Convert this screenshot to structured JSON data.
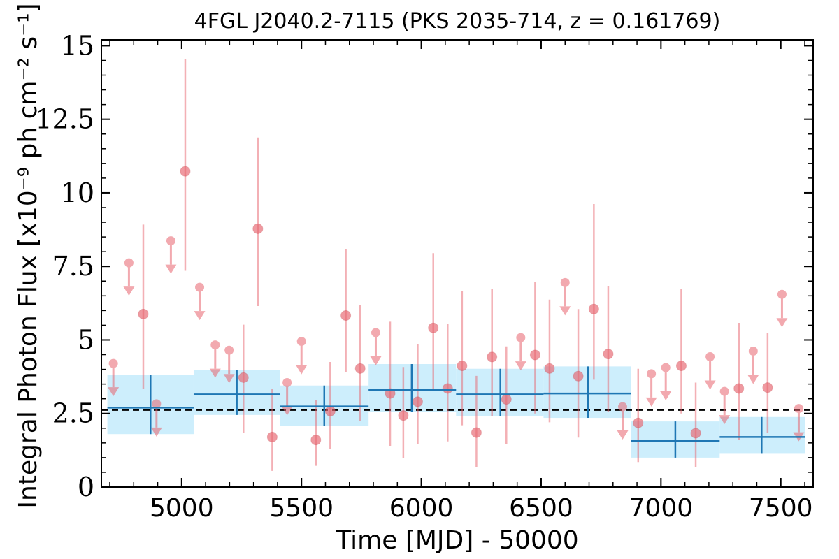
{
  "chart_data": {
    "type": "scatter",
    "title": "4FGL J2040.2-7115 (PKS 2035-714, z = 0.161769)",
    "xlabel": "Time [MJD] - 50000",
    "ylabel": "Integral Photon Flux [x10⁻⁹ ph cm⁻² s⁻¹]",
    "xlim": [
      4665,
      7635
    ],
    "ylim": [
      0,
      15.2
    ],
    "x_ticks": [
      5000,
      5500,
      6000,
      6500,
      7000,
      7500
    ],
    "x_tick_labels": [
      "5000",
      "5500",
      "6000",
      "6500",
      "7000",
      "7500"
    ],
    "y_ticks": [
      0,
      2.5,
      5,
      7.5,
      10,
      12.5,
      15
    ],
    "y_tick_labels": [
      "0",
      "2.5",
      "5",
      "7.5",
      "10",
      "12.5",
      "15"
    ],
    "mean_flux": 2.62,
    "colors": {
      "points": "#e8646e",
      "binned": "#1f77b4",
      "band": "#cdeefc",
      "mean_line": "#000000"
    },
    "measurements": [
      {
        "x": 4840,
        "y": 5.88,
        "lo": 3.35,
        "hi": 8.92
      },
      {
        "x": 5015,
        "y": 10.73,
        "lo": 7.35,
        "hi": 14.55
      },
      {
        "x": 5258,
        "y": 3.72,
        "lo": 1.85,
        "hi": 5.52
      },
      {
        "x": 5318,
        "y": 8.78,
        "lo": 6.15,
        "hi": 11.88
      },
      {
        "x": 5378,
        "y": 1.7,
        "lo": 0.55,
        "hi": 3.35
      },
      {
        "x": 5560,
        "y": 1.6,
        "lo": 0.72,
        "hi": 2.95
      },
      {
        "x": 5620,
        "y": 2.58,
        "lo": 1.3,
        "hi": 4.25
      },
      {
        "x": 5685,
        "y": 5.83,
        "lo": 3.9,
        "hi": 8.08
      },
      {
        "x": 5745,
        "y": 4.03,
        "lo": 2.25,
        "hi": 6.2
      },
      {
        "x": 5870,
        "y": 3.18,
        "lo": 1.4,
        "hi": 5.62
      },
      {
        "x": 5925,
        "y": 2.43,
        "lo": 0.98,
        "hi": 4.08
      },
      {
        "x": 5985,
        "y": 2.9,
        "lo": 1.45,
        "hi": 4.85
      },
      {
        "x": 6050,
        "y": 5.41,
        "lo": 3.35,
        "hi": 7.95
      },
      {
        "x": 6110,
        "y": 3.35,
        "lo": 1.55,
        "hi": 5.55
      },
      {
        "x": 6170,
        "y": 4.12,
        "lo": 2.1,
        "hi": 6.67
      },
      {
        "x": 6230,
        "y": 1.85,
        "lo": 0.67,
        "hi": 3.78
      },
      {
        "x": 6295,
        "y": 4.42,
        "lo": 2.4,
        "hi": 6.72
      },
      {
        "x": 6355,
        "y": 2.98,
        "lo": 1.45,
        "hi": 4.78
      },
      {
        "x": 6475,
        "y": 4.49,
        "lo": 2.5,
        "hi": 6.97
      },
      {
        "x": 6535,
        "y": 4.03,
        "lo": 2.2,
        "hi": 6.37
      },
      {
        "x": 6655,
        "y": 3.77,
        "lo": 1.68,
        "hi": 6.05
      },
      {
        "x": 6720,
        "y": 6.05,
        "lo": 3.65,
        "hi": 9.62
      },
      {
        "x": 6780,
        "y": 4.52,
        "lo": 2.55,
        "hi": 6.82
      },
      {
        "x": 6905,
        "y": 2.18,
        "lo": 0.85,
        "hi": 4.02
      },
      {
        "x": 7085,
        "y": 4.12,
        "lo": 2.5,
        "hi": 6.72
      },
      {
        "x": 7145,
        "y": 1.83,
        "lo": 0.68,
        "hi": 3.55
      },
      {
        "x": 7325,
        "y": 3.35,
        "lo": 1.6,
        "hi": 5.58
      },
      {
        "x": 7445,
        "y": 3.38,
        "lo": 1.85,
        "hi": 5.25
      }
    ],
    "upper_limits": [
      {
        "x": 4715,
        "y": 4.2
      },
      {
        "x": 4780,
        "y": 7.62
      },
      {
        "x": 4895,
        "y": 2.83
      },
      {
        "x": 4955,
        "y": 8.37
      },
      {
        "x": 5075,
        "y": 6.79
      },
      {
        "x": 5140,
        "y": 4.83
      },
      {
        "x": 5198,
        "y": 4.65
      },
      {
        "x": 5440,
        "y": 3.55
      },
      {
        "x": 5500,
        "y": 4.95
      },
      {
        "x": 5810,
        "y": 5.25
      },
      {
        "x": 6415,
        "y": 5.08
      },
      {
        "x": 6600,
        "y": 6.95
      },
      {
        "x": 6840,
        "y": 2.73
      },
      {
        "x": 6960,
        "y": 3.85
      },
      {
        "x": 7020,
        "y": 4.06
      },
      {
        "x": 7205,
        "y": 4.43
      },
      {
        "x": 7265,
        "y": 3.25
      },
      {
        "x": 7385,
        "y": 4.62
      },
      {
        "x": 7505,
        "y": 6.55
      },
      {
        "x": 7575,
        "y": 2.67
      }
    ],
    "bins": [
      {
        "x0": 4690,
        "x1": 5050,
        "xc": 4870,
        "y": 2.7,
        "ylo": 1.8,
        "yhi": 3.8
      },
      {
        "x0": 5050,
        "x1": 5410,
        "xc": 5230,
        "y": 3.15,
        "ylo": 2.45,
        "yhi": 3.97
      },
      {
        "x0": 5410,
        "x1": 5780,
        "xc": 5595,
        "y": 2.74,
        "ylo": 2.07,
        "yhi": 3.45
      },
      {
        "x0": 5780,
        "x1": 6145,
        "xc": 5960,
        "y": 3.3,
        "ylo": 2.55,
        "yhi": 4.18
      },
      {
        "x0": 6145,
        "x1": 6510,
        "xc": 6330,
        "y": 3.15,
        "ylo": 2.4,
        "yhi": 4.02
      },
      {
        "x0": 6510,
        "x1": 6875,
        "xc": 6695,
        "y": 3.18,
        "ylo": 2.35,
        "yhi": 4.1
      },
      {
        "x0": 6875,
        "x1": 7245,
        "xc": 7060,
        "y": 1.57,
        "ylo": 1.0,
        "yhi": 2.23
      },
      {
        "x0": 7245,
        "x1": 7600,
        "xc": 7420,
        "y": 1.7,
        "ylo": 1.13,
        "yhi": 2.38
      }
    ]
  }
}
